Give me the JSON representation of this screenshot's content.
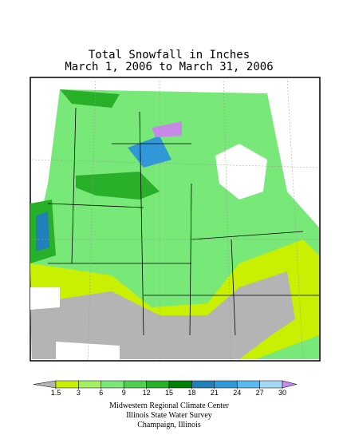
{
  "title": {
    "line1": "Total Snowfall in Inches",
    "line2": "March 1, 2006 to March 31, 2006"
  },
  "legend": {
    "ticks": [
      1.5,
      3,
      6,
      9,
      12,
      15,
      18,
      21,
      24,
      27,
      30
    ],
    "colors": [
      "#b4b4b4",
      "#c8f000",
      "#a0f060",
      "#78e878",
      "#50d050",
      "#28b028",
      "#008000",
      "#2080b8",
      "#3098d8",
      "#58b8f0",
      "#a8d8f8",
      "#c888e8"
    ]
  },
  "credits": [
    "Midwestern Regional Climate Center",
    "Illinois State Water Survey",
    "Champaign, Illinois"
  ]
}
